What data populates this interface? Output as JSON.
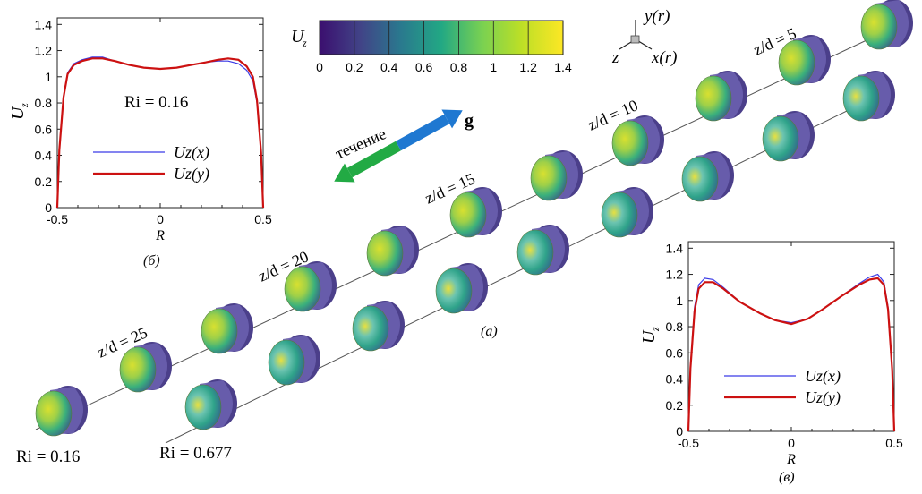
{
  "chart_data": [
    {
      "id": "b",
      "type": "line",
      "panel_label": "(б)",
      "xlabel": "R",
      "ylabel": "U",
      "ylabel_sub": "z",
      "xlim": [
        -0.5,
        0.5
      ],
      "ylim": [
        0,
        1.45
      ],
      "xticks": [
        "-0.5",
        "0",
        "0.5"
      ],
      "yticks": [
        "0",
        "0.2",
        "0.4",
        "0.6",
        "0.8",
        "1",
        "1.2",
        "1.4"
      ],
      "annotation": "Ri = 0.16",
      "legend": [
        "Uz(x)",
        "Uz(y)"
      ],
      "legend_placement": "lower-left",
      "series": [
        {
          "name": "Uz(x)",
          "color": "#3a3ae6",
          "x": [
            -0.5,
            -0.49,
            -0.47,
            -0.45,
            -0.42,
            -0.38,
            -0.33,
            -0.28,
            -0.22,
            -0.15,
            -0.08,
            0,
            0.08,
            0.15,
            0.22,
            0.28,
            0.33,
            0.38,
            0.42,
            0.45,
            0.47,
            0.49,
            0.5
          ],
          "values": [
            0,
            0.45,
            0.85,
            1.03,
            1.1,
            1.13,
            1.15,
            1.15,
            1.12,
            1.09,
            1.07,
            1.06,
            1.07,
            1.09,
            1.11,
            1.12,
            1.12,
            1.1,
            1.05,
            0.97,
            0.8,
            0.42,
            0
          ]
        },
        {
          "name": "Uz(y)",
          "color": "#cc1111",
          "x": [
            -0.5,
            -0.49,
            -0.47,
            -0.45,
            -0.42,
            -0.38,
            -0.33,
            -0.28,
            -0.22,
            -0.15,
            -0.08,
            0,
            0.08,
            0.15,
            0.22,
            0.28,
            0.33,
            0.38,
            0.42,
            0.45,
            0.47,
            0.49,
            0.5
          ],
          "values": [
            0,
            0.44,
            0.84,
            1.02,
            1.09,
            1.12,
            1.14,
            1.14,
            1.12,
            1.09,
            1.07,
            1.06,
            1.07,
            1.09,
            1.11,
            1.13,
            1.14,
            1.13,
            1.08,
            1.0,
            0.82,
            0.42,
            0
          ]
        }
      ]
    },
    {
      "id": "v",
      "type": "line",
      "panel_label": "(в)",
      "xlabel": "R",
      "ylabel": "U",
      "ylabel_sub": "z",
      "xlim": [
        -0.5,
        0.5
      ],
      "ylim": [
        0,
        1.45
      ],
      "xticks": [
        "-0.5",
        "0",
        "0.5"
      ],
      "yticks": [
        "0",
        "0.2",
        "0.4",
        "0.6",
        "0.8",
        "1",
        "1.2",
        "1.4"
      ],
      "legend": [
        "Uz(x)",
        "Uz(y)"
      ],
      "legend_placement": "lower-left",
      "series": [
        {
          "name": "Uz(x)",
          "color": "#3a3ae6",
          "x": [
            -0.5,
            -0.49,
            -0.47,
            -0.45,
            -0.42,
            -0.38,
            -0.33,
            -0.25,
            -0.15,
            -0.08,
            0,
            0.08,
            0.15,
            0.25,
            0.33,
            0.38,
            0.42,
            0.45,
            0.47,
            0.49,
            0.5
          ],
          "values": [
            0,
            0.5,
            0.95,
            1.12,
            1.17,
            1.16,
            1.1,
            0.99,
            0.9,
            0.85,
            0.83,
            0.86,
            0.93,
            1.04,
            1.13,
            1.18,
            1.2,
            1.14,
            0.95,
            0.48,
            0
          ]
        },
        {
          "name": "Uz(y)",
          "color": "#cc1111",
          "x": [
            -0.5,
            -0.49,
            -0.47,
            -0.45,
            -0.42,
            -0.38,
            -0.33,
            -0.25,
            -0.15,
            -0.08,
            0,
            0.08,
            0.15,
            0.25,
            0.33,
            0.38,
            0.42,
            0.45,
            0.47,
            0.49,
            0.5
          ],
          "values": [
            0,
            0.48,
            0.92,
            1.09,
            1.14,
            1.14,
            1.09,
            0.99,
            0.9,
            0.85,
            0.82,
            0.86,
            0.93,
            1.04,
            1.12,
            1.16,
            1.17,
            1.12,
            0.93,
            0.47,
            0
          ]
        }
      ]
    }
  ],
  "main_figure": {
    "panel_label": "(а)",
    "colorbar": {
      "label": "U",
      "label_sub": "z",
      "ticks": [
        "0",
        "0.2",
        "0.4",
        "0.6",
        "0.8",
        "1",
        "1.2",
        "1.4"
      ],
      "range": [
        0,
        1.4
      ],
      "colormap": [
        "#3b0f6f",
        "#414487",
        "#2a788e",
        "#22a884",
        "#7ad151",
        "#bddf26",
        "#fde725"
      ]
    },
    "axes_triad": {
      "y": "y(r)",
      "z": "z",
      "x": "x(r)"
    },
    "flow_arrow": {
      "label": "течение",
      "green": "#22aa44",
      "blue": "#1f78d1"
    },
    "gravity_label": "g",
    "stations": [
      "z/d = 25",
      "z/d = 20",
      "z/d = 15",
      "z/d = 10",
      "z/d = 5"
    ],
    "row_labels": [
      "Ri = 0.16",
      "Ri = 0.677"
    ]
  }
}
